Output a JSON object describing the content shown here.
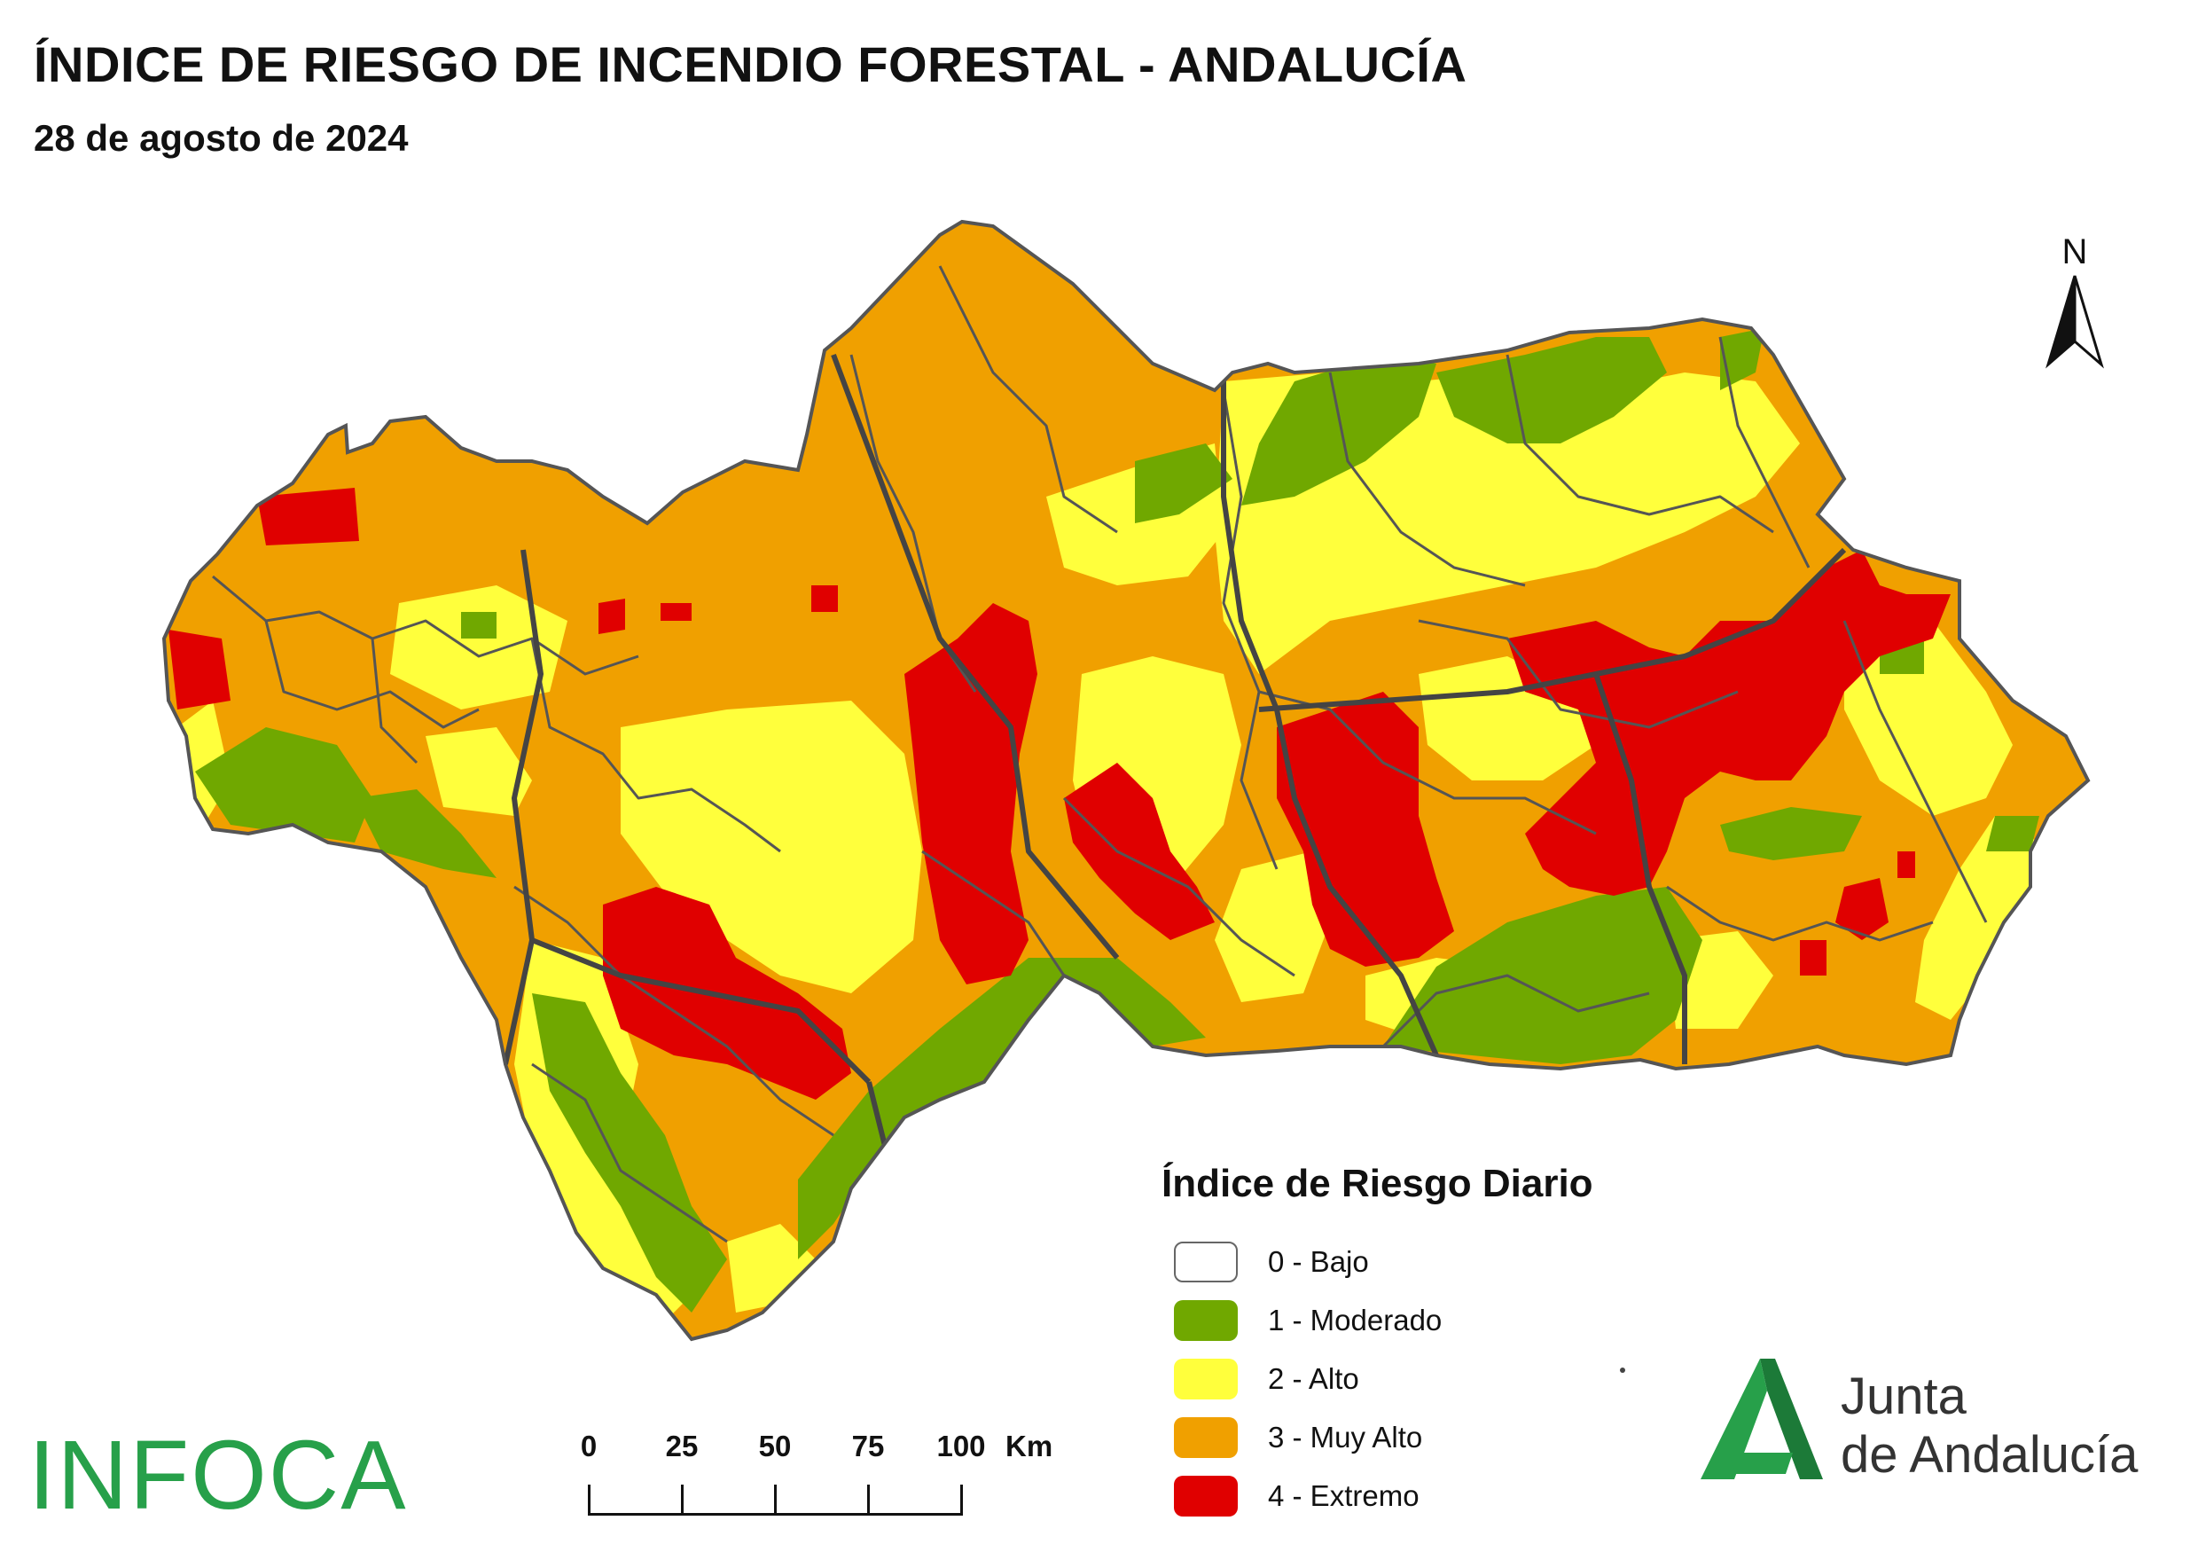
{
  "title": "ÍNDICE DE RIESGO DE INCENDIO FORESTAL - ANDALUCÍA",
  "subtitle": "28 de agosto de 2024",
  "north_label": "N",
  "legend": {
    "title": "Índice de Riesgo Diario",
    "items": [
      {
        "label": "0 - Bajo",
        "color": "#ffffff"
      },
      {
        "label": "1 - Moderado",
        "color": "#70a800"
      },
      {
        "label": "2 - Alto",
        "color": "#ffff3c"
      },
      {
        "label": "3 - Muy Alto",
        "color": "#f0a000"
      },
      {
        "label": "4 - Extremo",
        "color": "#e00000"
      }
    ]
  },
  "scale": {
    "ticks": [
      "0",
      "25",
      "50",
      "75",
      "100"
    ],
    "unit": "Km"
  },
  "infoca_logo": "INFOCA",
  "junta_logo": {
    "line1": "Junta",
    "line2": "de Andalucía",
    "color": "#27a04a"
  }
}
